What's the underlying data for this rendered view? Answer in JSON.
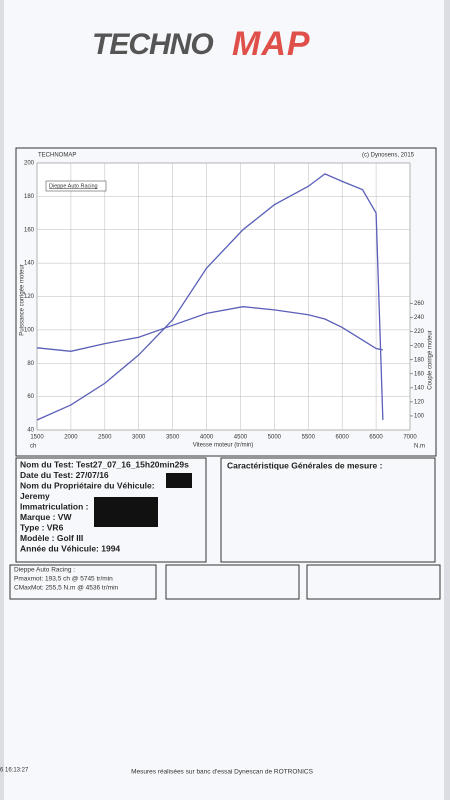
{
  "logo": {
    "part1": "TECHNO",
    "part2": "MAP"
  },
  "chart_data": {
    "type": "line",
    "header_left": "TECHNOMAP",
    "header_right": "(c) Dynosens, 2015",
    "legend": "Dieppe Auto Racing",
    "xlabel": "Vitesse moteur (tr/min)",
    "ylabel": "Puissance corrigée moteur",
    "y2label": "Couple corrigé moteur",
    "y_unit": "ch",
    "y2_unit": "N.m",
    "x": [
      1500,
      2000,
      2500,
      3000,
      3500,
      4000,
      4536,
      5000,
      5500,
      5745,
      6000,
      6300,
      6500,
      6600
    ],
    "series": [
      {
        "color": "#5a5fb8",
        "values": [
          46,
          55,
          68,
          85,
          106,
          137,
          160,
          175,
          186,
          193.5,
          189,
          184,
          170,
          46
        ]
      },
      {
        "color": "#5a5fb8",
        "axis": "y2",
        "values": [
          197,
          192,
          203,
          212,
          229,
          246,
          255.5,
          251,
          244,
          238,
          226,
          208,
          196,
          194
        ]
      }
    ],
    "xlim": [
      1500,
      7000
    ],
    "xticks": [
      1500,
      2000,
      2500,
      3000,
      3500,
      4000,
      4500,
      5000,
      5500,
      6000,
      6500,
      7000
    ],
    "ylim": [
      40,
      200
    ],
    "yticks": [
      40,
      60,
      80,
      100,
      120,
      140,
      160,
      180,
      200
    ],
    "y2lim": [
      80,
      460
    ],
    "y2ticks": [
      100,
      120,
      140,
      160,
      180,
      200,
      220,
      240,
      260
    ],
    "grid": true
  },
  "info": {
    "lines": [
      "Nom du Test: Test27_07_16_15h20min29s",
      "Date du Test: 27/07/16",
      "Nom du Propriétaire du Véhicule:",
      "Jeremy",
      "Immatriculation :",
      "Marque : VW",
      "Type : VR6",
      "Modèle : Golf III",
      "Année du Véhicule: 1994"
    ],
    "right_title": "Caractéristique Générales de mesure :"
  },
  "results": {
    "title": "Dieppe Auto Racing :",
    "lines": [
      "Pmaxmot: 193,5 ch @ 5745 tr/min",
      "CMaxMot: 255,5 N.m @ 4536 tr/min"
    ]
  },
  "footer": {
    "timestamp": "6 16:13:27",
    "note": "Mesures réalisées sur banc d'essai Dynescan de ROTRONICS"
  }
}
